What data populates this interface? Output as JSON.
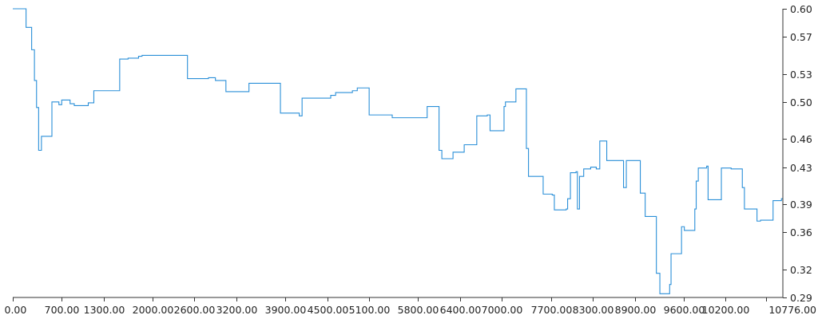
{
  "chart_data": {
    "type": "line",
    "step": true,
    "title": "",
    "xlabel": "",
    "ylabel": "",
    "xlim": [
      0,
      10776
    ],
    "ylim": [
      0.29,
      0.6
    ],
    "x_tick_values": [
      0,
      700,
      1300,
      2000,
      2600,
      3200,
      3900,
      4500,
      5100,
      5800,
      6400,
      7000,
      7700,
      8300,
      8900,
      9600,
      10200,
      10776
    ],
    "x_tick_labels": [
      "0.00",
      "700.00",
      "1300.00",
      "2000.00",
      "2600.00",
      "3200.00",
      "3900.00",
      "4500.00",
      "5100.00",
      "5800.00",
      "6400.00",
      "7000.00",
      "7700.00",
      "8300.00",
      "8900.00",
      "9600.00",
      "10200.00",
      "10776.00"
    ],
    "y_tick_values": [
      0.29,
      0.32,
      0.36,
      0.39,
      0.43,
      0.46,
      0.5,
      0.53,
      0.57,
      0.6
    ],
    "y_tick_labels": [
      "0.29",
      "0.32",
      "0.36",
      "0.39",
      "0.43",
      "0.46",
      "0.50",
      "0.53",
      "0.57",
      "0.60"
    ],
    "y_axis_side": "right",
    "grid": false,
    "legend": "none",
    "series": [
      {
        "color": "#2a8fd8",
        "points": [
          [
            0,
            0.6
          ],
          [
            190,
            0.58
          ],
          [
            270,
            0.556
          ],
          [
            310,
            0.523
          ],
          [
            340,
            0.494
          ],
          [
            370,
            0.448
          ],
          [
            410,
            0.463
          ],
          [
            560,
            0.5
          ],
          [
            660,
            0.497
          ],
          [
            700,
            0.502
          ],
          [
            820,
            0.498
          ],
          [
            880,
            0.496
          ],
          [
            1080,
            0.499
          ],
          [
            1160,
            0.512
          ],
          [
            1530,
            0.546
          ],
          [
            1650,
            0.547
          ],
          [
            1800,
            0.549
          ],
          [
            1850,
            0.55
          ],
          [
            2500,
            0.525
          ],
          [
            2800,
            0.526
          ],
          [
            2900,
            0.523
          ],
          [
            3050,
            0.521
          ],
          [
            3050,
            0.511
          ],
          [
            3380,
            0.52
          ],
          [
            3830,
            0.488
          ],
          [
            4100,
            0.485
          ],
          [
            4140,
            0.504
          ],
          [
            4500,
            0.504
          ],
          [
            4550,
            0.507
          ],
          [
            4620,
            0.51
          ],
          [
            4860,
            0.512
          ],
          [
            4930,
            0.515
          ],
          [
            5100,
            0.486
          ],
          [
            5430,
            0.483
          ],
          [
            5930,
            0.495
          ],
          [
            6100,
            0.448
          ],
          [
            6140,
            0.439
          ],
          [
            6300,
            0.446
          ],
          [
            6460,
            0.446
          ],
          [
            6460,
            0.454
          ],
          [
            6560,
            0.454
          ],
          [
            6640,
            0.485
          ],
          [
            6790,
            0.486
          ],
          [
            6830,
            0.469
          ],
          [
            7000,
            0.469
          ],
          [
            7030,
            0.495
          ],
          [
            7050,
            0.5
          ],
          [
            7200,
            0.514
          ],
          [
            7350,
            0.45
          ],
          [
            7380,
            0.424
          ],
          [
            7380,
            0.42
          ],
          [
            7590,
            0.401
          ],
          [
            7720,
            0.4
          ],
          [
            7750,
            0.384
          ],
          [
            7920,
            0.385
          ],
          [
            7940,
            0.396
          ],
          [
            7980,
            0.424
          ],
          [
            8060,
            0.425
          ],
          [
            8080,
            0.385
          ],
          [
            8110,
            0.42
          ],
          [
            8170,
            0.428
          ],
          [
            8270,
            0.43
          ],
          [
            8350,
            0.428
          ],
          [
            8400,
            0.458
          ],
          [
            8500,
            0.437
          ],
          [
            8700,
            0.437
          ],
          [
            8740,
            0.408
          ],
          [
            8780,
            0.437
          ],
          [
            8920,
            0.437
          ],
          [
            8980,
            0.402
          ],
          [
            9050,
            0.377
          ],
          [
            9210,
            0.316
          ],
          [
            9260,
            0.294
          ],
          [
            9400,
            0.304
          ],
          [
            9420,
            0.337
          ],
          [
            9570,
            0.366
          ],
          [
            9610,
            0.362
          ],
          [
            9760,
            0.385
          ],
          [
            9780,
            0.415
          ],
          [
            9810,
            0.429
          ],
          [
            9930,
            0.431
          ],
          [
            9950,
            0.395
          ],
          [
            10140,
            0.429
          ],
          [
            10280,
            0.428
          ],
          [
            10440,
            0.408
          ],
          [
            10470,
            0.385
          ],
          [
            10650,
            0.372
          ],
          [
            10700,
            0.373
          ],
          [
            10870,
            0.373
          ],
          [
            10880,
            0.394
          ],
          [
            10960,
            0.394
          ],
          [
            11000,
            0.396
          ],
          [
            11020,
            0.396
          ]
        ]
      }
    ]
  }
}
